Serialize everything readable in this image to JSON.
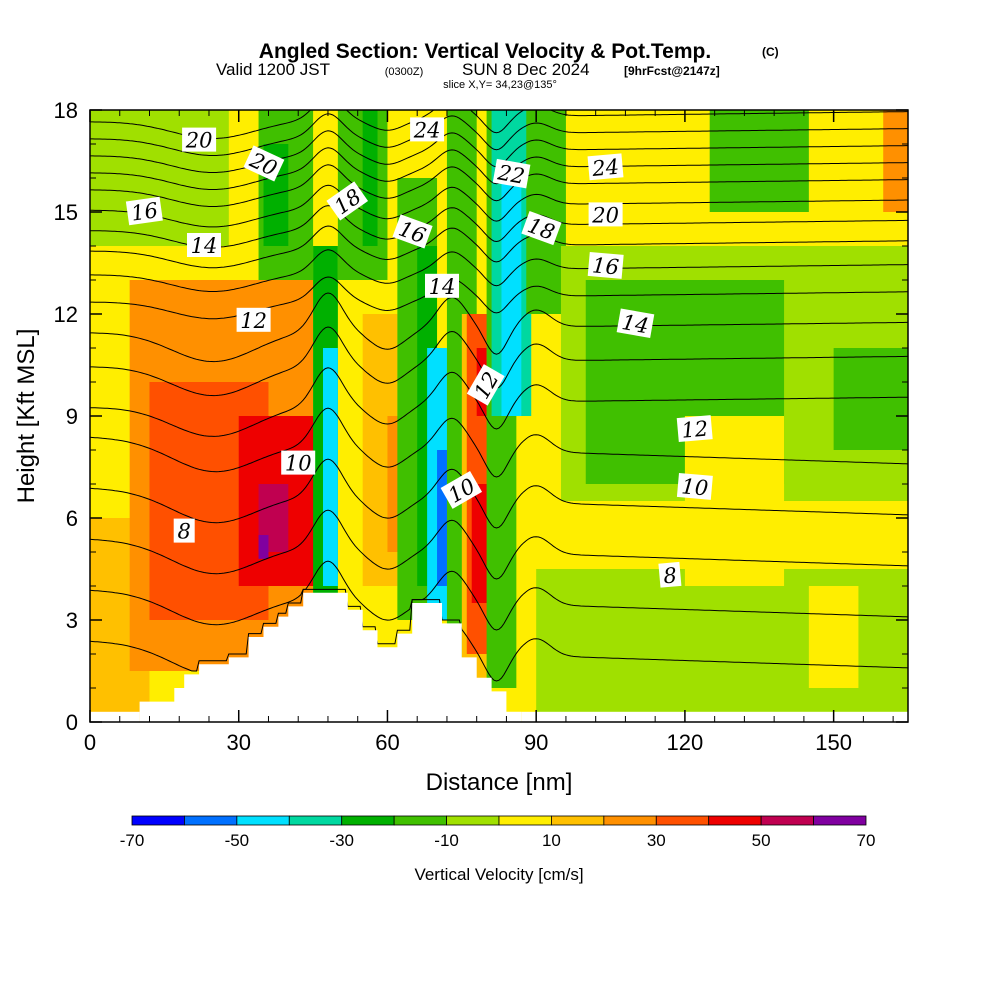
{
  "header": {
    "title": "Angled Section: Vertical Velocity & Pot.Temp.",
    "title_unit": "(C)",
    "valid_pre": "Valid 1200 JST",
    "valid_utc": "(0300Z)",
    "valid_date": "SUN 8 Dec 2024",
    "forecast_info": "[9hrFcst@2147z]",
    "slice": "slice X,Y= 34,23@135°"
  },
  "chart_data": {
    "type": "heatmap",
    "xlabel": "Distance [nm]",
    "ylabel": "Height [Kft MSL]",
    "xlim": [
      0,
      165
    ],
    "ylim": [
      0,
      18
    ],
    "x_ticks": [
      "0",
      "30",
      "60",
      "90",
      "120",
      "150"
    ],
    "y_ticks": [
      "0",
      "3",
      "6",
      "9",
      "12",
      "15",
      "18"
    ],
    "colorbar": {
      "title": "Vertical Velocity [cm/s]",
      "tick_labels": [
        "-70",
        "-50",
        "-30",
        "-10",
        "10",
        "30",
        "50",
        "70"
      ],
      "levels": [
        -70,
        -60,
        -50,
        -40,
        -30,
        -20,
        -10,
        0,
        10,
        20,
        30,
        40,
        50,
        60,
        70
      ],
      "colors": [
        "#0000ff",
        "#0070ff",
        "#00e0ff",
        "#00d8a0",
        "#00b000",
        "#40c000",
        "#a0e000",
        "#ffee00",
        "#ffc000",
        "#ff9000",
        "#ff5000",
        "#ee0000",
        "#c00050",
        "#8000a0"
      ]
    },
    "terrain_profile": [
      [
        0,
        0
      ],
      [
        10,
        0
      ],
      [
        10,
        0.6
      ],
      [
        17,
        0.6
      ],
      [
        17,
        1.0
      ],
      [
        19,
        1.0
      ],
      [
        19,
        1.4
      ],
      [
        22,
        1.4
      ],
      [
        22,
        1.7
      ],
      [
        28,
        1.7
      ],
      [
        28,
        1.9
      ],
      [
        32,
        1.9
      ],
      [
        32,
        2.5
      ],
      [
        35,
        2.5
      ],
      [
        35,
        2.8
      ],
      [
        38,
        2.8
      ],
      [
        38,
        3.1
      ],
      [
        40,
        3.1
      ],
      [
        40,
        3.4
      ],
      [
        43,
        3.4
      ],
      [
        43,
        3.8
      ],
      [
        52,
        3.8
      ],
      [
        52,
        3.3
      ],
      [
        55,
        3.3
      ],
      [
        55,
        2.7
      ],
      [
        58,
        2.7
      ],
      [
        58,
        2.2
      ],
      [
        62,
        2.2
      ],
      [
        62,
        2.6
      ],
      [
        65,
        2.6
      ],
      [
        65,
        3.5
      ],
      [
        71,
        3.5
      ],
      [
        71,
        2.9
      ],
      [
        75,
        2.9
      ],
      [
        75,
        1.9
      ],
      [
        78,
        1.9
      ],
      [
        78,
        1.3
      ],
      [
        81,
        1.3
      ],
      [
        81,
        0.9
      ],
      [
        84,
        0.9
      ],
      [
        84,
        0.3
      ],
      [
        87,
        0.3
      ],
      [
        87,
        0
      ],
      [
        165,
        0
      ]
    ],
    "velocity_cells": [
      {
        "x": [
          0,
          165
        ],
        "y": [
          0,
          18
        ],
        "w": 5
      },
      {
        "x": [
          0,
          28
        ],
        "y": [
          14,
          18
        ],
        "w": -5
      },
      {
        "x": [
          0,
          12
        ],
        "y": [
          0,
          6
        ],
        "w": 15
      },
      {
        "x": [
          8,
          45
        ],
        "y": [
          1.5,
          13
        ],
        "w": 25
      },
      {
        "x": [
          12,
          36
        ],
        "y": [
          3,
          10
        ],
        "w": 35
      },
      {
        "x": [
          30,
          46
        ],
        "y": [
          4,
          9
        ],
        "w": 45
      },
      {
        "x": [
          34,
          40
        ],
        "y": [
          5,
          7
        ],
        "w": 55
      },
      {
        "x": [
          34,
          36
        ],
        "y": [
          4.8,
          5.5
        ],
        "w": 65
      },
      {
        "x": [
          34,
          45
        ],
        "y": [
          13,
          18
        ],
        "w": -15
      },
      {
        "x": [
          35,
          40
        ],
        "y": [
          14,
          17
        ],
        "w": -25
      },
      {
        "x": [
          45,
          50
        ],
        "y": [
          3,
          14
        ],
        "w": -25
      },
      {
        "x": [
          47,
          50
        ],
        "y": [
          4,
          11
        ],
        "w": -45
      },
      {
        "x": [
          50,
          60
        ],
        "y": [
          13,
          18
        ],
        "w": -15
      },
      {
        "x": [
          55,
          58
        ],
        "y": [
          14,
          18
        ],
        "w": -25
      },
      {
        "x": [
          55,
          62
        ],
        "y": [
          4,
          12
        ],
        "w": 15
      },
      {
        "x": [
          60,
          64
        ],
        "y": [
          5,
          9
        ],
        "w": 25
      },
      {
        "x": [
          62,
          70
        ],
        "y": [
          3,
          16
        ],
        "w": -15
      },
      {
        "x": [
          66,
          70
        ],
        "y": [
          4,
          14
        ],
        "w": -25
      },
      {
        "x": [
          68,
          76
        ],
        "y": [
          3,
          11
        ],
        "w": -45
      },
      {
        "x": [
          70,
          74
        ],
        "y": [
          4,
          8
        ],
        "w": -55
      },
      {
        "x": [
          72,
          78
        ],
        "y": [
          1,
          18
        ],
        "w": -15
      },
      {
        "x": [
          75,
          80
        ],
        "y": [
          1,
          12
        ],
        "w": 15
      },
      {
        "x": [
          76,
          82
        ],
        "y": [
          2,
          12
        ],
        "w": 35
      },
      {
        "x": [
          77,
          81
        ],
        "y": [
          3.5,
          7
        ],
        "w": 45
      },
      {
        "x": [
          78,
          80
        ],
        "y": [
          9,
          11
        ],
        "w": 45
      },
      {
        "x": [
          80,
          86
        ],
        "y": [
          1,
          18
        ],
        "w": -15
      },
      {
        "x": [
          81,
          89
        ],
        "y": [
          9,
          18
        ],
        "w": -35
      },
      {
        "x": [
          83,
          87
        ],
        "y": [
          9,
          16
        ],
        "w": -45
      },
      {
        "x": [
          88,
          96
        ],
        "y": [
          12,
          18
        ],
        "w": -15
      },
      {
        "x": [
          90,
          165
        ],
        "y": [
          0,
          4.5
        ],
        "w": -5
      },
      {
        "x": [
          95,
          165
        ],
        "y": [
          6.5,
          14
        ],
        "w": -5
      },
      {
        "x": [
          100,
          140
        ],
        "y": [
          7,
          13
        ],
        "w": -15
      },
      {
        "x": [
          150,
          165
        ],
        "y": [
          8,
          11
        ],
        "w": -15
      },
      {
        "x": [
          125,
          145
        ],
        "y": [
          15,
          18
        ],
        "w": -15
      },
      {
        "x": [
          120,
          140
        ],
        "y": [
          4,
          9
        ],
        "w": 5
      },
      {
        "x": [
          145,
          155
        ],
        "y": [
          1,
          4
        ],
        "w": 5
      },
      {
        "x": [
          160,
          165
        ],
        "y": [
          15,
          18
        ],
        "w": 25
      }
    ],
    "isentropes": [
      {
        "theta": 7,
        "base_height": 2.0
      },
      {
        "theta": 8,
        "base_height": 3.5
      },
      {
        "theta": 9,
        "base_height": 5.0
      },
      {
        "theta": 10,
        "base_height": 6.5
      },
      {
        "theta": 11,
        "base_height": 8.0
      },
      {
        "theta": 12,
        "base_height": 9.4
      },
      {
        "theta": 13,
        "base_height": 10.6
      },
      {
        "theta": 14,
        "base_height": 11.6
      },
      {
        "theta": 15,
        "base_height": 12.5
      },
      {
        "theta": 16,
        "base_height": 13.3
      },
      {
        "theta": 17,
        "base_height": 14.0
      },
      {
        "theta": 18,
        "base_height": 14.6
      },
      {
        "theta": 19,
        "base_height": 15.2
      },
      {
        "theta": 20,
        "base_height": 15.8
      },
      {
        "theta": 21,
        "base_height": 16.3
      },
      {
        "theta": 22,
        "base_height": 16.8
      },
      {
        "theta": 23,
        "base_height": 17.3
      },
      {
        "theta": 24,
        "base_height": 17.8
      }
    ],
    "contour_labels": [
      {
        "text": "20",
        "x": 22,
        "y": 17.1,
        "rotate": 0
      },
      {
        "text": "20",
        "x": 35,
        "y": 16.4,
        "rotate": 25
      },
      {
        "text": "24",
        "x": 68,
        "y": 17.4,
        "rotate": 0
      },
      {
        "text": "22",
        "x": 85,
        "y": 16.1,
        "rotate": 10
      },
      {
        "text": "24",
        "x": 104,
        "y": 16.3,
        "rotate": -5
      },
      {
        "text": "16",
        "x": 11,
        "y": 15.0,
        "rotate": -8
      },
      {
        "text": "18",
        "x": 52,
        "y": 15.3,
        "rotate": -35
      },
      {
        "text": "20",
        "x": 104,
        "y": 14.9,
        "rotate": 0
      },
      {
        "text": "16",
        "x": 65,
        "y": 14.4,
        "rotate": 20
      },
      {
        "text": "18",
        "x": 91,
        "y": 14.5,
        "rotate": 20
      },
      {
        "text": "14",
        "x": 23,
        "y": 14.0,
        "rotate": 0
      },
      {
        "text": "16",
        "x": 104,
        "y": 13.4,
        "rotate": 5
      },
      {
        "text": "14",
        "x": 71,
        "y": 12.8,
        "rotate": 0
      },
      {
        "text": "12",
        "x": 33,
        "y": 11.8,
        "rotate": 0
      },
      {
        "text": "14",
        "x": 110,
        "y": 11.7,
        "rotate": 10
      },
      {
        "text": "12",
        "x": 80,
        "y": 9.9,
        "rotate": -60
      },
      {
        "text": "12",
        "x": 122,
        "y": 8.6,
        "rotate": -5
      },
      {
        "text": "10",
        "x": 42,
        "y": 7.6,
        "rotate": 0
      },
      {
        "text": "10",
        "x": 75,
        "y": 6.8,
        "rotate": -30
      },
      {
        "text": "10",
        "x": 122,
        "y": 6.9,
        "rotate": 5
      },
      {
        "text": "8",
        "x": 19,
        "y": 5.6,
        "rotate": 0
      },
      {
        "text": "8",
        "x": 117,
        "y": 4.3,
        "rotate": -5
      }
    ]
  }
}
